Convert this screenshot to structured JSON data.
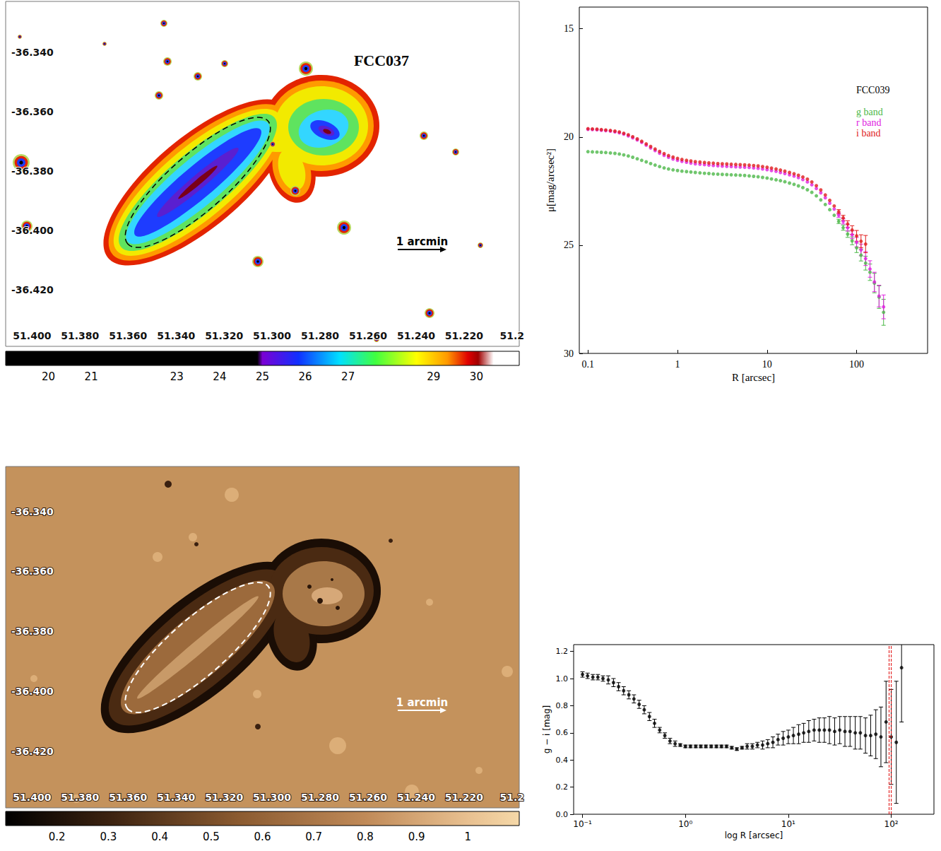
{
  "chart_data": [
    {
      "type": "image",
      "title": "FCC037",
      "xlim": [
        51.411,
        51.197
      ],
      "ylim": [
        -36.439,
        -36.323
      ],
      "xticks": [
        {
          "value": 51.4,
          "label": "51.400"
        },
        {
          "value": 51.38,
          "label": "51.380"
        },
        {
          "value": 51.36,
          "label": "51.360"
        },
        {
          "value": 51.34,
          "label": "51.340"
        },
        {
          "value": 51.32,
          "label": "51.320"
        },
        {
          "value": 51.3,
          "label": "51.300"
        },
        {
          "value": 51.28,
          "label": "51.280"
        },
        {
          "value": 51.26,
          "label": "51.260"
        },
        {
          "value": 51.24,
          "label": "51.240"
        },
        {
          "value": 51.22,
          "label": "51.220"
        },
        51.2
      ],
      "yticks": [
        {
          "value": -36.34,
          "label": "-36.340"
        },
        {
          "value": -36.36,
          "label": "-36.360"
        },
        {
          "value": -36.38,
          "label": "-36.380"
        },
        {
          "value": -36.4,
          "label": "-36.400"
        },
        {
          "value": -36.42,
          "label": "-36.420"
        }
      ],
      "annotations": [
        "1 arcmin"
      ],
      "colorbar_range": [
        19,
        31
      ],
      "colorbar_ticks": [
        20,
        21,
        23,
        24,
        25,
        26,
        27,
        29,
        30
      ]
    },
    {
      "type": "scatter",
      "title": "FCC039",
      "x_label": "R [arcsec]",
      "y_label": "μ[mag/arcsec²]",
      "log": "x",
      "xlim": [
        0.08,
        620
      ],
      "xticks": [
        0.1,
        1,
        10,
        100
      ],
      "ylim": [
        30,
        14
      ],
      "yticks": [
        15,
        20,
        25,
        30
      ],
      "x": [
        0.1,
        0.112,
        0.126,
        0.141,
        0.158,
        0.178,
        0.2,
        0.224,
        0.251,
        0.282,
        0.316,
        0.355,
        0.398,
        0.447,
        0.501,
        0.562,
        0.631,
        0.708,
        0.794,
        0.891,
        1,
        1.12,
        1.26,
        1.41,
        1.58,
        1.78,
        2,
        2.24,
        2.51,
        2.82,
        3.16,
        3.55,
        3.98,
        4.47,
        5.01,
        5.62,
        6.31,
        7.08,
        7.94,
        8.91,
        10,
        11.2,
        12.6,
        14.1,
        15.8,
        17.8,
        20,
        22.4,
        25.1,
        28.2,
        31.6,
        35.5,
        39.8,
        44.7,
        50.1,
        56.2,
        63.1,
        70.8,
        79.4,
        89.1,
        100,
        112,
        126,
        141,
        158,
        178,
        200
      ],
      "series": [
        {
          "name": "g band",
          "color": "#4cb848",
          "marker": "circle",
          "values": [
            20.68,
            20.69,
            20.7,
            20.71,
            20.72,
            20.74,
            20.76,
            20.79,
            20.83,
            20.88,
            20.94,
            21.01,
            21.08,
            21.15,
            21.23,
            21.3,
            21.37,
            21.43,
            21.48,
            21.52,
            21.55,
            21.58,
            21.6,
            21.62,
            21.64,
            21.66,
            21.68,
            21.69,
            21.71,
            21.72,
            21.73,
            21.74,
            21.75,
            21.76,
            21.77,
            21.78,
            21.8,
            21.82,
            21.84,
            21.87,
            21.9,
            21.94,
            21.98,
            22.02,
            22.07,
            22.13,
            22.19,
            22.26,
            22.34,
            22.44,
            22.56,
            22.72,
            22.91,
            23.12,
            23.36,
            23.62,
            23.9,
            24.19,
            24.49,
            24.8,
            25.12,
            25.46,
            25.83,
            26.25,
            26.75,
            27.4,
            28.1
          ],
          "errors": [
            null,
            null,
            null,
            null,
            null,
            null,
            null,
            null,
            null,
            null,
            null,
            null,
            null,
            null,
            null,
            null,
            null,
            null,
            null,
            null,
            null,
            null,
            null,
            null,
            null,
            null,
            null,
            null,
            null,
            null,
            null,
            null,
            null,
            null,
            null,
            null,
            null,
            null,
            null,
            null,
            null,
            null,
            null,
            null,
            null,
            null,
            null,
            null,
            null,
            null,
            null,
            null,
            null,
            null,
            null,
            null,
            0.1,
            0.12,
            0.15,
            0.18,
            0.22,
            0.27,
            0.32,
            0.38,
            0.45,
            0.52,
            0.6
          ]
        },
        {
          "name": "r band",
          "color": "#e020e0",
          "marker": "circle",
          "values": [
            19.65,
            19.66,
            19.67,
            19.69,
            19.71,
            19.73,
            19.77,
            19.81,
            19.87,
            19.95,
            20.04,
            20.14,
            20.25,
            20.38,
            20.51,
            20.63,
            20.75,
            20.85,
            20.94,
            21.02,
            21.08,
            21.13,
            21.17,
            21.21,
            21.24,
            21.26,
            21.28,
            21.3,
            21.32,
            21.33,
            21.35,
            21.36,
            21.37,
            21.38,
            21.39,
            21.4,
            21.41,
            21.43,
            21.45,
            21.48,
            21.51,
            21.55,
            21.59,
            21.64,
            21.69,
            21.75,
            21.81,
            21.88,
            21.97,
            22.08,
            22.21,
            22.38,
            22.58,
            22.81,
            23.06,
            23.33,
            23.61,
            23.9,
            24.2,
            24.52,
            24.86,
            25.22,
            25.62,
            26.1,
            26.7,
            27.35,
            27.85
          ],
          "errors": [
            null,
            null,
            null,
            null,
            null,
            null,
            null,
            null,
            null,
            null,
            null,
            null,
            null,
            null,
            null,
            null,
            null,
            null,
            null,
            null,
            null,
            null,
            null,
            null,
            null,
            null,
            null,
            null,
            null,
            null,
            null,
            null,
            null,
            null,
            null,
            null,
            null,
            null,
            null,
            null,
            null,
            null,
            null,
            null,
            null,
            null,
            null,
            null,
            null,
            null,
            null,
            null,
            null,
            null,
            null,
            null,
            0.1,
            0.12,
            0.15,
            0.18,
            0.22,
            0.27,
            0.32,
            0.38,
            0.45,
            0.5,
            0.55
          ]
        },
        {
          "name": "i band",
          "color": "#e01b1b",
          "marker": "circle",
          "values": [
            19.62,
            19.63,
            19.64,
            19.66,
            19.68,
            19.7,
            19.73,
            19.77,
            19.83,
            19.9,
            19.99,
            20.09,
            20.2,
            20.32,
            20.44,
            20.56,
            20.67,
            20.77,
            20.86,
            20.93,
            20.99,
            21.04,
            21.08,
            21.11,
            21.14,
            21.16,
            21.18,
            21.2,
            21.21,
            21.23,
            21.24,
            21.25,
            21.26,
            21.27,
            21.28,
            21.29,
            21.3,
            21.32,
            21.34,
            21.37,
            21.4,
            21.44,
            21.48,
            21.53,
            21.58,
            21.64,
            21.7,
            21.77,
            21.85,
            21.95,
            22.08,
            22.25,
            22.45,
            22.68,
            22.93,
            23.19,
            23.46,
            23.74,
            24.02,
            24.3,
            24.57,
            24.82,
            24.95,
            null,
            null,
            null,
            null
          ],
          "errors": [
            null,
            null,
            null,
            null,
            null,
            null,
            null,
            null,
            null,
            null,
            null,
            null,
            null,
            null,
            null,
            null,
            null,
            null,
            null,
            null,
            null,
            null,
            null,
            null,
            null,
            null,
            null,
            null,
            null,
            null,
            null,
            null,
            null,
            null,
            null,
            null,
            null,
            null,
            null,
            null,
            null,
            null,
            null,
            null,
            null,
            null,
            null,
            null,
            null,
            null,
            null,
            null,
            null,
            null,
            null,
            null,
            0.1,
            0.12,
            0.15,
            0.2,
            0.25,
            0.3,
            0.4,
            null,
            null,
            null,
            null
          ]
        }
      ]
    },
    {
      "type": "image",
      "xlim": [
        51.411,
        51.197
      ],
      "ylim": [
        -36.439,
        -36.325
      ],
      "xticks": [
        {
          "value": 51.4,
          "label": "51.400"
        },
        {
          "value": 51.38,
          "label": "51.380"
        },
        {
          "value": 51.36,
          "label": "51.360"
        },
        {
          "value": 51.34,
          "label": "51.340"
        },
        {
          "value": 51.32,
          "label": "51.320"
        },
        {
          "value": 51.3,
          "label": "51.300"
        },
        {
          "value": 51.28,
          "label": "51.280"
        },
        {
          "value": 51.26,
          "label": "51.260"
        },
        {
          "value": 51.24,
          "label": "51.240"
        },
        {
          "value": 51.22,
          "label": "51.220"
        },
        51.2
      ],
      "yticks": [
        {
          "value": -36.34,
          "label": "-36.340"
        },
        {
          "value": -36.36,
          "label": "-36.360"
        },
        {
          "value": -36.38,
          "label": "-36.380"
        },
        {
          "value": -36.4,
          "label": "-36.400"
        },
        {
          "value": -36.42,
          "label": "-36.420"
        }
      ],
      "annotations": [
        "1 arcmin"
      ],
      "colorbar_range": [
        0.1,
        1.1
      ],
      "colorbar_ticks": [
        0.2,
        0.3,
        0.4,
        0.5,
        0.6,
        0.7,
        0.8,
        0.9,
        1
      ]
    },
    {
      "type": "scatter",
      "x_label": "log R [arcsec]",
      "y_label": "g − i [mag]",
      "log": "x",
      "xlim": [
        0.082,
        260
      ],
      "xticks": [
        {
          "value": 0.1,
          "label": "10⁻¹"
        },
        {
          "value": 1,
          "label": "10⁰"
        },
        {
          "value": 10,
          "label": "10¹"
        },
        {
          "value": 100,
          "label": "10²"
        }
      ],
      "ylim": [
        0,
        1.25
      ],
      "yticks": [
        {
          "value": 0,
          "label": "0.0"
        },
        0.2,
        0.4,
        0.6,
        0.8,
        {
          "value": 1,
          "label": "1.0"
        },
        1.2
      ],
      "color": "#000000",
      "marker": "circle",
      "x": [
        0.1,
        0.112,
        0.126,
        0.141,
        0.158,
        0.178,
        0.2,
        0.224,
        0.251,
        0.282,
        0.316,
        0.355,
        0.398,
        0.447,
        0.501,
        0.562,
        0.631,
        0.708,
        0.794,
        0.891,
        1,
        1.12,
        1.26,
        1.41,
        1.58,
        1.78,
        2,
        2.24,
        2.51,
        2.82,
        3.16,
        3.55,
        3.98,
        4.47,
        5.01,
        5.62,
        6.31,
        7.08,
        7.94,
        8.91,
        10,
        11.2,
        12.6,
        14.1,
        15.8,
        17.8,
        20,
        22.4,
        25.1,
        28.2,
        31.6,
        35.5,
        39.8,
        44.7,
        50.1,
        56.2,
        63.1,
        70.8,
        79.4,
        89.1,
        100,
        112,
        126
      ],
      "values": [
        1.03,
        1.02,
        1.01,
        1.01,
        1.0,
        0.99,
        0.97,
        0.94,
        0.91,
        0.88,
        0.85,
        0.81,
        0.77,
        0.72,
        0.67,
        0.62,
        0.58,
        0.54,
        0.52,
        0.51,
        0.5,
        0.5,
        0.5,
        0.5,
        0.5,
        0.5,
        0.5,
        0.5,
        0.5,
        0.49,
        0.48,
        0.49,
        0.5,
        0.5,
        0.51,
        0.51,
        0.52,
        0.53,
        0.55,
        0.56,
        0.57,
        0.58,
        0.59,
        0.6,
        0.61,
        0.62,
        0.62,
        0.62,
        0.62,
        0.61,
        0.62,
        0.61,
        0.61,
        0.6,
        0.6,
        0.58,
        0.58,
        0.59,
        0.57,
        0.68,
        0.57,
        0.53,
        1.08
      ],
      "errors": [
        0.02,
        0.02,
        0.02,
        0.02,
        0.02,
        0.03,
        0.03,
        0.03,
        0.03,
        0.03,
        0.03,
        0.03,
        0.03,
        0.03,
        0.03,
        0.02,
        0.02,
        0.02,
        0.02,
        0.01,
        0.01,
        0.01,
        0.01,
        0.01,
        0.01,
        0.01,
        0.01,
        0.01,
        0.01,
        0.01,
        0.01,
        0.01,
        0.02,
        0.02,
        0.02,
        0.03,
        0.03,
        0.04,
        0.04,
        0.05,
        0.05,
        0.06,
        0.07,
        0.07,
        0.08,
        0.08,
        0.09,
        0.09,
        0.1,
        0.1,
        0.1,
        0.11,
        0.11,
        0.12,
        0.12,
        0.13,
        0.15,
        0.18,
        0.22,
        0.3,
        0.35,
        0.45,
        0.4
      ],
      "vlines": [
        95,
        100
      ]
    }
  ]
}
